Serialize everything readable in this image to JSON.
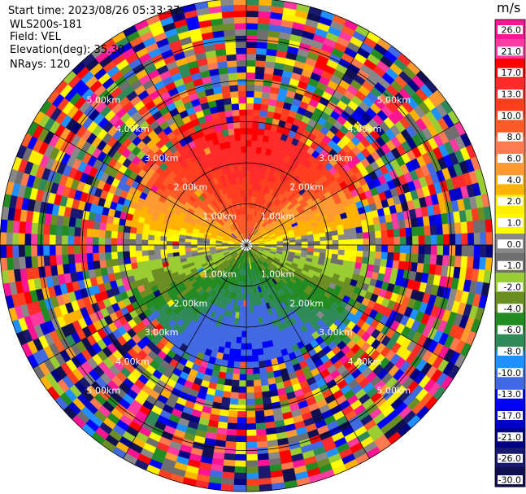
{
  "header": {
    "start_time": "Start time: 2023/08/26 05:33:37",
    "site": "WLS200s-181",
    "field": "Field: VEL",
    "elevation": "Elevation(deg): 35.30",
    "nrays": "NRays: 120"
  },
  "chart_data": {
    "type": "heatmap",
    "projection": "polar (PPI)",
    "field": "VEL",
    "units": "m/s",
    "elevation_deg": 35.3,
    "n_rays": 120,
    "max_range_km": 6.0,
    "range_rings_km": [
      1,
      2,
      3,
      4,
      5,
      6
    ],
    "ring_labels": [
      "1.00km",
      "2.00km",
      "3.00km",
      "4.00km",
      "5.00km"
    ],
    "azimuth_lines_deg": [
      0,
      30,
      60,
      90,
      120,
      150,
      180,
      210,
      240,
      270,
      300,
      330
    ],
    "pattern_summary": {
      "near_field_north": "positive velocities (~8 to 13 m/s, orange-red) for ranges < ~2.5 km",
      "near_field_south": "negative velocities (~-4 to -10 m/s, green to blue) for ranges < ~2.5 km",
      "east_west_band": "near-zero velocities (gray/yellow) along the east-west axis",
      "far_field": "noisy random colors beyond ~3 km"
    },
    "colorbar": {
      "title": "m/s",
      "ticks": [
        "26.0",
        "21.0",
        "17.0",
        "13.0",
        "10.0",
        "8.0",
        "6.0",
        "4.0",
        "2.0",
        "1.0",
        "0.0",
        "-1.0",
        "-2.0",
        "-4.0",
        "-6.0",
        "-8.0",
        "-10.0",
        "-13.0",
        "-17.0",
        "-21.0",
        "-26.0",
        "-30.0"
      ],
      "colors": [
        "#ff1493",
        "#ff3aa0",
        "#ff0000",
        "#ff2a2a",
        "#ff3e20",
        "#ff5a28",
        "#ff7a50",
        "#ff9a30",
        "#ffb300",
        "#ffee00",
        "#ffff00",
        "#888888",
        "#6e6e6e",
        "#9acd32",
        "#6b8e23",
        "#228b22",
        "#2e8b57",
        "#1e90ff",
        "#4169e1",
        "#0000ff",
        "#0000cd",
        "#000080",
        "#191970",
        "#101050"
      ]
    }
  }
}
